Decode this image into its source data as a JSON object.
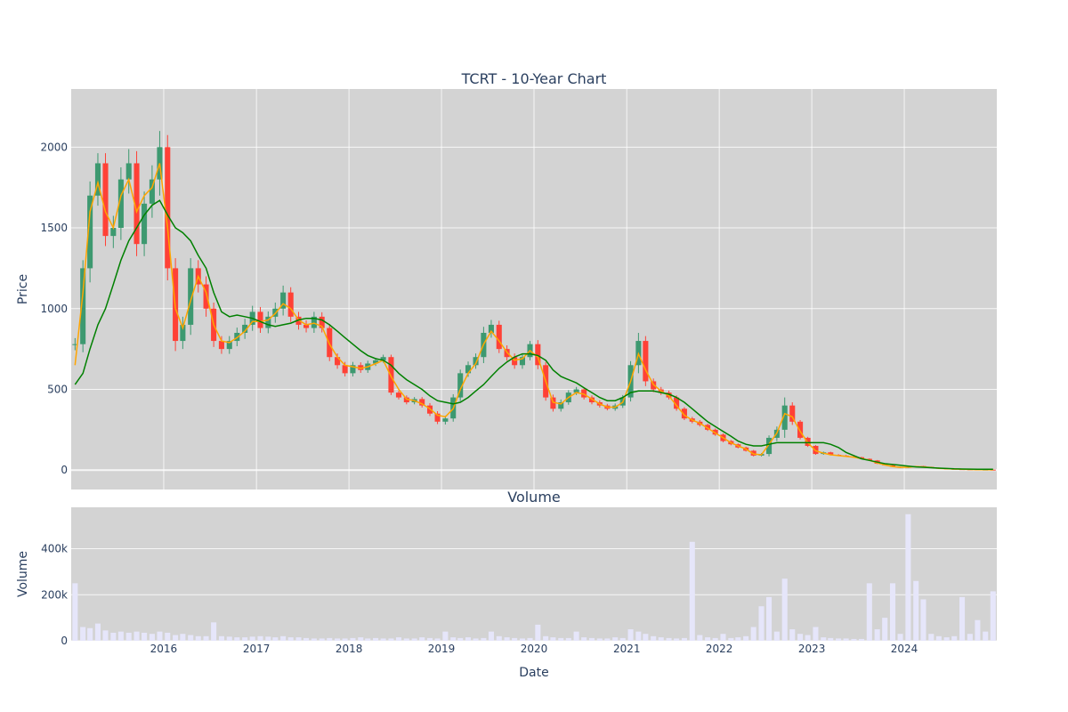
{
  "chart_data": [
    {
      "type": "candlestick",
      "title": "TCRT - 10-Year Chart",
      "ylabel": "Price",
      "xlabel": "",
      "ylim": [
        -120,
        2360
      ],
      "y_ticks": [
        0,
        500,
        1000,
        1500,
        2000
      ],
      "y_tick_labels": [
        "0",
        "500",
        "1000",
        "1500",
        "2000"
      ],
      "x_range": [
        "2015-01-01",
        "2024-12-31"
      ],
      "x_ticks": [
        "2016-01-01",
        "2017-01-01",
        "2018-01-01",
        "2019-01-01",
        "2020-01-01",
        "2021-01-01",
        "2022-01-01",
        "2023-01-01",
        "2024-01-01"
      ],
      "grid": true,
      "background": "#d3d3d3",
      "colors": {
        "up": "#3d9970",
        "down": "#ff4136",
        "ma_short": "#ffa500",
        "ma_long": "#008000"
      },
      "price_series": {
        "name": "",
        "x": [
          "2015-01-01",
          "2015-02-01",
          "2015-03-01",
          "2015-04-01",
          "2015-05-01",
          "2015-06-01",
          "2015-07-01",
          "2015-08-01",
          "2015-09-01",
          "2015-10-01",
          "2015-11-01",
          "2015-12-01",
          "2016-01-01",
          "2016-02-01",
          "2016-03-01",
          "2016-04-01",
          "2016-05-01",
          "2016-06-01",
          "2016-07-01",
          "2016-08-01",
          "2016-09-01",
          "2016-10-01",
          "2016-11-01",
          "2016-12-01",
          "2017-01-01",
          "2017-02-01",
          "2017-03-01",
          "2017-04-01",
          "2017-05-01",
          "2017-06-01",
          "2017-07-01",
          "2017-08-01",
          "2017-09-01",
          "2017-10-01",
          "2017-11-01",
          "2017-12-01",
          "2018-01-01",
          "2018-02-01",
          "2018-03-01",
          "2018-04-01",
          "2018-05-01",
          "2018-06-01",
          "2018-07-01",
          "2018-08-01",
          "2018-09-01",
          "2018-10-01",
          "2018-11-01",
          "2018-12-01",
          "2019-01-01",
          "2019-02-01",
          "2019-03-01",
          "2019-04-01",
          "2019-05-01",
          "2019-06-01",
          "2019-07-01",
          "2019-08-01",
          "2019-09-01",
          "2019-10-01",
          "2019-11-01",
          "2019-12-01",
          "2020-01-01",
          "2020-02-01",
          "2020-03-01",
          "2020-04-01",
          "2020-05-01",
          "2020-06-01",
          "2020-07-01",
          "2020-08-01",
          "2020-09-01",
          "2020-10-01",
          "2020-11-01",
          "2020-12-01",
          "2021-01-01",
          "2021-02-01",
          "2021-03-01",
          "2021-04-01",
          "2021-05-01",
          "2021-06-01",
          "2021-07-01",
          "2021-08-01",
          "2021-09-01",
          "2021-10-01",
          "2021-11-01",
          "2021-12-01",
          "2022-01-01",
          "2022-02-01",
          "2022-03-01",
          "2022-04-01",
          "2022-05-01",
          "2022-06-01",
          "2022-07-01",
          "2022-08-01",
          "2022-09-01",
          "2022-10-01",
          "2022-11-01",
          "2022-12-01",
          "2023-01-01",
          "2023-02-01",
          "2023-03-01",
          "2023-04-01",
          "2023-05-01",
          "2023-06-01",
          "2023-07-01",
          "2023-08-01",
          "2023-09-01",
          "2023-10-01",
          "2023-11-01",
          "2023-12-01",
          "2024-01-01",
          "2024-02-01",
          "2024-03-01",
          "2024-04-01",
          "2024-05-01",
          "2024-06-01",
          "2024-07-01",
          "2024-08-01",
          "2024-09-01",
          "2024-10-01",
          "2024-11-01",
          "2024-12-01"
        ],
        "close": [
          780,
          1250,
          1700,
          1900,
          1450,
          1500,
          1800,
          1900,
          1400,
          1650,
          1800,
          2000,
          1250,
          800,
          900,
          1250,
          1150,
          1000,
          800,
          750,
          800,
          850,
          900,
          980,
          880,
          950,
          1000,
          1100,
          950,
          900,
          880,
          950,
          880,
          700,
          650,
          600,
          650,
          620,
          660,
          680,
          700,
          480,
          450,
          420,
          440,
          400,
          350,
          300,
          320,
          450,
          600,
          650,
          700,
          850,
          900,
          750,
          700,
          650,
          700,
          780,
          650,
          450,
          380,
          420,
          480,
          500,
          450,
          420,
          400,
          380,
          400,
          450,
          650,
          800,
          550,
          500,
          480,
          450,
          380,
          320,
          300,
          280,
          250,
          220,
          180,
          160,
          140,
          120,
          90,
          100,
          200,
          250,
          400,
          300,
          200,
          150,
          100,
          110,
          95,
          90,
          85,
          80,
          70,
          60,
          40,
          30,
          20,
          15,
          20,
          25,
          20,
          15,
          10,
          8,
          6,
          5,
          4,
          3,
          3,
          2
        ],
        "range": [
          150,
          200,
          350,
          250,
          250,
          300,
          300,
          350,
          300,
          300,
          350,
          400,
          300,
          250,
          200,
          250,
          200,
          200,
          150,
          120,
          120,
          130,
          150,
          150,
          120,
          130,
          150,
          170,
          130,
          120,
          110,
          120,
          110,
          100,
          90,
          80,
          80,
          70,
          70,
          60,
          60,
          60,
          50,
          50,
          50,
          50,
          60,
          60,
          70,
          80,
          90,
          90,
          90,
          150,
          120,
          100,
          90,
          90,
          90,
          80,
          100,
          80,
          70,
          70,
          60,
          60,
          50,
          50,
          50,
          40,
          50,
          60,
          100,
          200,
          120,
          70,
          60,
          50,
          50,
          40,
          40,
          40,
          30,
          30,
          30,
          25,
          20,
          20,
          20,
          20,
          60,
          80,
          200,
          80,
          40,
          25,
          20,
          20,
          15,
          15,
          15,
          15,
          10,
          10,
          10,
          8,
          8,
          6,
          6,
          6,
          6,
          5,
          5,
          4,
          3,
          3,
          2,
          2,
          2,
          2
        ]
      },
      "ma_short": [
        650,
        1100,
        1600,
        1780,
        1600,
        1500,
        1700,
        1800,
        1600,
        1700,
        1750,
        1900,
        1500,
        1000,
        880,
        1050,
        1200,
        1100,
        900,
        800,
        790,
        820,
        860,
        920,
        920,
        930,
        970,
        1030,
        1000,
        930,
        900,
        910,
        890,
        780,
        700,
        650,
        640,
        630,
        640,
        660,
        680,
        580,
        500,
        440,
        430,
        410,
        380,
        340,
        330,
        380,
        500,
        600,
        660,
        780,
        860,
        800,
        730,
        680,
        690,
        740,
        700,
        550,
        420,
        410,
        450,
        480,
        470,
        440,
        410,
        390,
        390,
        420,
        550,
        720,
        620,
        530,
        490,
        460,
        400,
        340,
        310,
        290,
        260,
        230,
        200,
        170,
        150,
        130,
        100,
        95,
        160,
        230,
        350,
        330,
        240,
        170,
        120,
        105,
        95,
        90,
        85,
        80,
        72,
        62,
        45,
        32,
        22,
        17,
        18,
        22,
        20,
        16,
        11,
        9,
        7,
        5,
        4,
        3,
        3,
        2
      ],
      "ma_long": [
        530,
        600,
        750,
        900,
        1000,
        1150,
        1300,
        1420,
        1500,
        1580,
        1640,
        1670,
        1580,
        1500,
        1470,
        1420,
        1330,
        1250,
        1100,
        980,
        950,
        960,
        950,
        940,
        920,
        900,
        890,
        900,
        910,
        930,
        940,
        940,
        930,
        900,
        860,
        820,
        780,
        740,
        710,
        690,
        680,
        650,
        600,
        560,
        530,
        500,
        460,
        430,
        420,
        410,
        420,
        450,
        490,
        530,
        580,
        630,
        670,
        700,
        720,
        720,
        710,
        680,
        620,
        580,
        560,
        540,
        510,
        480,
        450,
        430,
        430,
        450,
        480,
        490,
        490,
        490,
        480,
        470,
        450,
        420,
        380,
        340,
        300,
        270,
        240,
        210,
        180,
        160,
        150,
        150,
        160,
        170,
        170,
        170,
        170,
        170,
        170,
        170,
        160,
        140,
        110,
        90,
        70,
        60,
        50,
        40,
        35,
        30,
        25,
        20,
        18,
        15,
        12,
        10,
        8,
        7,
        6,
        5,
        5,
        5
      ]
    },
    {
      "type": "bar",
      "title": "Volume",
      "ylabel": "Volume",
      "xlabel": "Date",
      "ylim": [
        0,
        580000
      ],
      "y_ticks": [
        0,
        200000,
        400000
      ],
      "y_tick_labels": [
        "0",
        "200k",
        "400k"
      ],
      "x_tick_labels": [
        "2016",
        "2017",
        "2018",
        "2019",
        "2020",
        "2021",
        "2022",
        "2023",
        "2024"
      ],
      "color": "#e6e6fa",
      "background": "#d3d3d3",
      "series": [
        {
          "name": "",
          "x": [
            "2015-01-01",
            "2015-02-01",
            "2015-03-01",
            "2015-04-01",
            "2015-05-01",
            "2015-06-01",
            "2015-07-01",
            "2015-08-01",
            "2015-09-01",
            "2015-10-01",
            "2015-11-01",
            "2015-12-01",
            "2016-01-01",
            "2016-02-01",
            "2016-03-01",
            "2016-04-01",
            "2016-05-01",
            "2016-06-01",
            "2016-07-01",
            "2016-08-01",
            "2016-09-01",
            "2016-10-01",
            "2016-11-01",
            "2016-12-01",
            "2017-01-01",
            "2017-02-01",
            "2017-03-01",
            "2017-04-01",
            "2017-05-01",
            "2017-06-01",
            "2017-07-01",
            "2017-08-01",
            "2017-09-01",
            "2017-10-01",
            "2017-11-01",
            "2017-12-01",
            "2018-01-01",
            "2018-02-01",
            "2018-03-01",
            "2018-04-01",
            "2018-05-01",
            "2018-06-01",
            "2018-07-01",
            "2018-08-01",
            "2018-09-01",
            "2018-10-01",
            "2018-11-01",
            "2018-12-01",
            "2019-01-01",
            "2019-02-01",
            "2019-03-01",
            "2019-04-01",
            "2019-05-01",
            "2019-06-01",
            "2019-07-01",
            "2019-08-01",
            "2019-09-01",
            "2019-10-01",
            "2019-11-01",
            "2019-12-01",
            "2020-01-01",
            "2020-02-01",
            "2020-03-01",
            "2020-04-01",
            "2020-05-01",
            "2020-06-01",
            "2020-07-01",
            "2020-08-01",
            "2020-09-01",
            "2020-10-01",
            "2020-11-01",
            "2020-12-01",
            "2021-01-01",
            "2021-02-01",
            "2021-03-01",
            "2021-04-01",
            "2021-05-01",
            "2021-06-01",
            "2021-07-01",
            "2021-08-01",
            "2021-09-01",
            "2021-10-01",
            "2021-11-01",
            "2021-12-01",
            "2022-01-01",
            "2022-02-01",
            "2022-03-01",
            "2022-04-01",
            "2022-05-01",
            "2022-06-01",
            "2022-07-01",
            "2022-08-01",
            "2022-09-01",
            "2022-10-01",
            "2022-11-01",
            "2022-12-01",
            "2023-01-01",
            "2023-02-01",
            "2023-03-01",
            "2023-04-01",
            "2023-05-01",
            "2023-06-01",
            "2023-07-01",
            "2023-08-01",
            "2023-09-01",
            "2023-10-01",
            "2023-11-01",
            "2023-12-01",
            "2024-01-01",
            "2024-02-01",
            "2024-03-01",
            "2024-04-01",
            "2024-05-01",
            "2024-06-01",
            "2024-07-01",
            "2024-08-01",
            "2024-09-01",
            "2024-10-01",
            "2024-11-01",
            "2024-12-01"
          ],
          "values": [
            250000,
            60000,
            55000,
            75000,
            45000,
            35000,
            40000,
            35000,
            40000,
            35000,
            30000,
            40000,
            35000,
            25000,
            30000,
            25000,
            20000,
            20000,
            80000,
            20000,
            18000,
            15000,
            15000,
            18000,
            20000,
            18000,
            15000,
            20000,
            15000,
            15000,
            12000,
            10000,
            10000,
            12000,
            10000,
            10000,
            12000,
            15000,
            10000,
            12000,
            10000,
            10000,
            15000,
            10000,
            10000,
            15000,
            12000,
            10000,
            40000,
            15000,
            12000,
            15000,
            10000,
            12000,
            40000,
            20000,
            15000,
            12000,
            10000,
            12000,
            70000,
            20000,
            15000,
            12000,
            12000,
            40000,
            15000,
            12000,
            10000,
            10000,
            15000,
            12000,
            50000,
            40000,
            30000,
            20000,
            15000,
            12000,
            10000,
            12000,
            430000,
            25000,
            15000,
            12000,
            30000,
            12000,
            15000,
            20000,
            60000,
            150000,
            190000,
            40000,
            270000,
            50000,
            30000,
            25000,
            60000,
            15000,
            12000,
            10000,
            10000,
            8000,
            8000,
            250000,
            50000,
            100000,
            250000,
            30000,
            550000,
            260000,
            180000,
            30000,
            20000,
            15000,
            20000,
            190000,
            30000,
            90000,
            40000,
            215000
          ]
        }
      ]
    }
  ]
}
